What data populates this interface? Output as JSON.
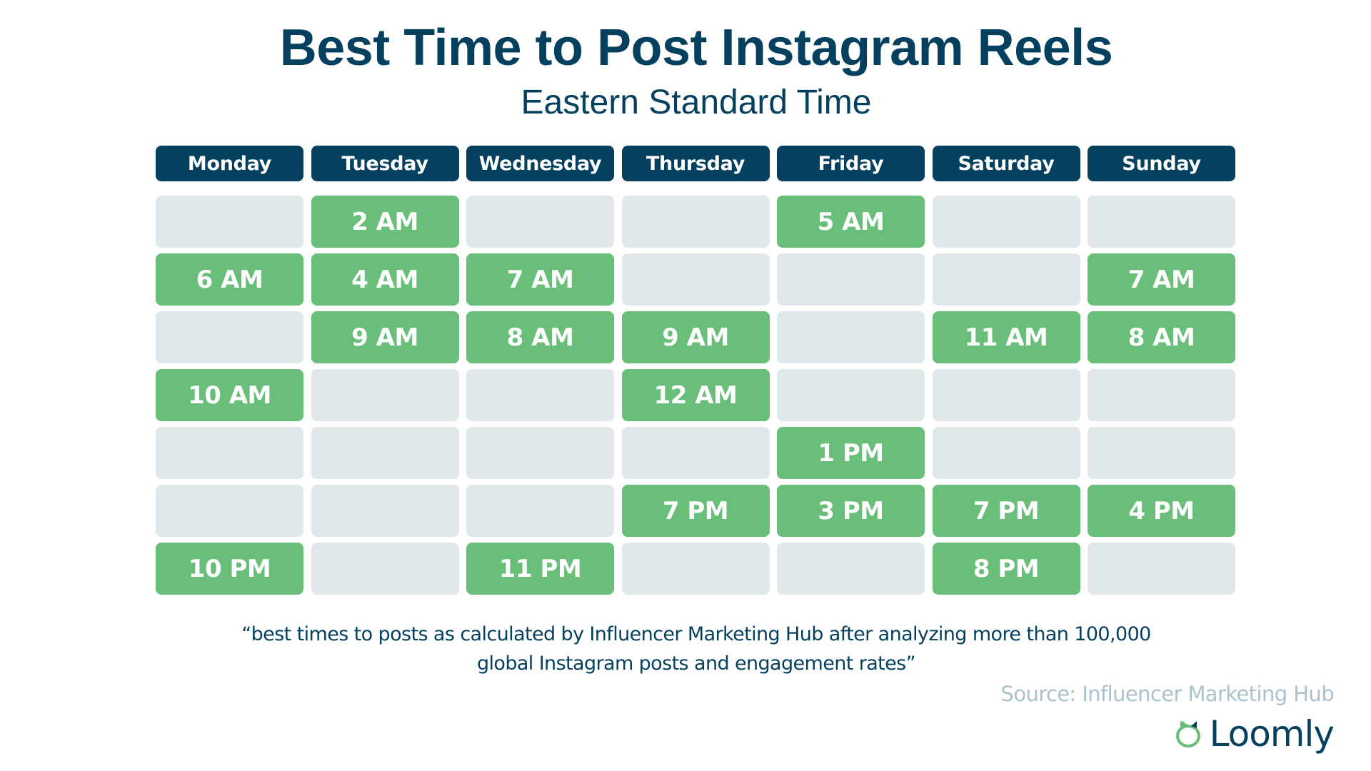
{
  "title": "Best Time to Post Instagram Reels",
  "subtitle": "Eastern Standard Time",
  "colors": {
    "navy": "#05415F",
    "green": "#69BF79",
    "empty_cell": "#E1E8EC",
    "source_text": "#ABC1CD"
  },
  "days": [
    "Monday",
    "Tuesday",
    "Wednesday",
    "Thursday",
    "Friday",
    "Saturday",
    "Sunday"
  ],
  "rows": [
    [
      "",
      "2 AM",
      "",
      "",
      "5 AM",
      "",
      ""
    ],
    [
      "6 AM",
      "4 AM",
      "7 AM",
      "",
      "",
      "",
      "7 AM"
    ],
    [
      "",
      "9 AM",
      "8 AM",
      "9 AM",
      "",
      "11 AM",
      "8 AM"
    ],
    [
      "10 AM",
      "",
      "",
      "12 AM",
      "",
      "",
      ""
    ],
    [
      "",
      "",
      "",
      "",
      "1 PM",
      "",
      ""
    ],
    [
      "",
      "",
      "",
      "7 PM",
      "3 PM",
      "7 PM",
      "4 PM"
    ],
    [
      "10 PM",
      "",
      "11 PM",
      "",
      "",
      "8 PM",
      ""
    ]
  ],
  "footnote": {
    "line1": "“best times to posts as calculated by Influencer Marketing Hub after analyzing more than 100,000",
    "line2": "global Instagram posts and engagement rates”"
  },
  "source": "Source: Influencer Marketing Hub",
  "logo": {
    "icon": "loomly-logo-icon",
    "text": "Loomly"
  },
  "chart_data": {
    "type": "table",
    "title": "Best Time to Post Instagram Reels",
    "subtitle": "Eastern Standard Time",
    "columns": [
      "Monday",
      "Tuesday",
      "Wednesday",
      "Thursday",
      "Friday",
      "Saturday",
      "Sunday"
    ],
    "best_times": {
      "Monday": [
        "6 AM",
        "10 AM",
        "10 PM"
      ],
      "Tuesday": [
        "2 AM",
        "4 AM",
        "9 AM"
      ],
      "Wednesday": [
        "7 AM",
        "8 AM",
        "11 PM"
      ],
      "Thursday": [
        "9 AM",
        "12 AM",
        "7 PM"
      ],
      "Friday": [
        "5 AM",
        "1 PM",
        "3 PM"
      ],
      "Saturday": [
        "11 AM",
        "7 PM",
        "8 PM"
      ],
      "Sunday": [
        "7 AM",
        "8 AM",
        "4 PM"
      ]
    },
    "grid_rows": 7,
    "source": "Influencer Marketing Hub"
  }
}
